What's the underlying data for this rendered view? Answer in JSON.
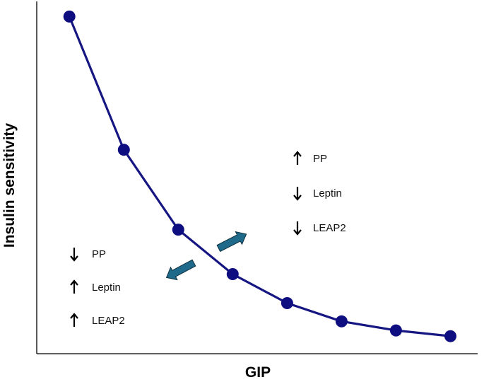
{
  "chart_data": {
    "type": "line",
    "title": "",
    "xlabel": "GIP",
    "ylabel": "Insulin sensitivity",
    "x": [
      1,
      2,
      3,
      4,
      5,
      6,
      7,
      8
    ],
    "series": [
      {
        "values": [
          100,
          60.5,
          36.8,
          23.6,
          15.0,
          9.6,
          6.9,
          5.2
        ]
      }
    ],
    "xlim": [
      0.4,
      8.5
    ],
    "ylim": [
      0,
      104.5
    ],
    "grid": false,
    "legend": "none",
    "colors": {
      "line": "#161682",
      "marker": "#0e0e80",
      "arrow": "#1f6a8a",
      "axis": "#000000"
    },
    "annotations": {
      "left_group": [
        {
          "direction": "down",
          "label": "PP"
        },
        {
          "direction": "up",
          "label": "Leptin"
        },
        {
          "direction": "up",
          "label": "LEAP2"
        }
      ],
      "right_group": [
        {
          "direction": "up",
          "label": "PP"
        },
        {
          "direction": "down",
          "label": "Leptin"
        },
        {
          "direction": "down",
          "label": "LEAP2"
        }
      ],
      "trend_arrows": [
        {
          "direction": "down-left",
          "icon": "teal-block-arrow-down-left-icon"
        },
        {
          "direction": "up-right",
          "icon": "teal-block-arrow-up-right-icon"
        }
      ]
    }
  }
}
